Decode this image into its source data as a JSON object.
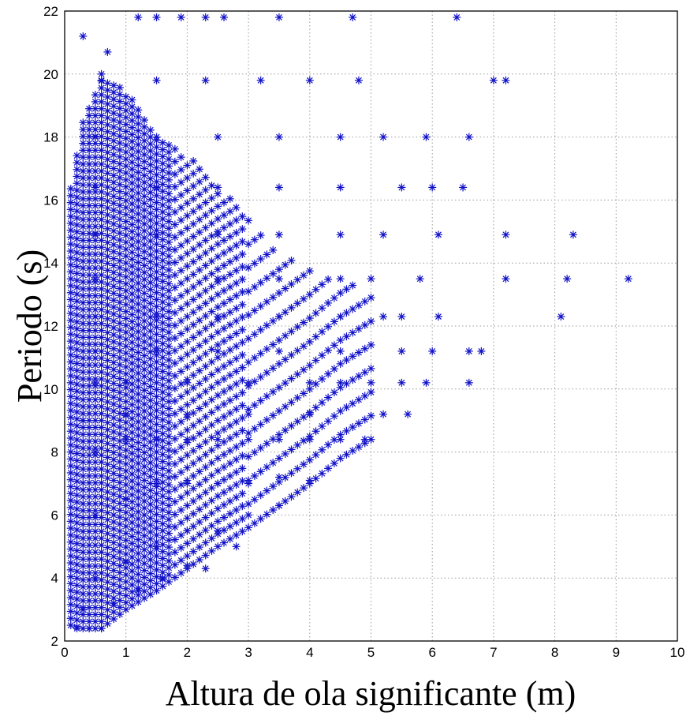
{
  "chart_data": {
    "type": "scatter",
    "xlabel": "Altura de ola significante (m)",
    "ylabel": "Periodo (s)",
    "xlim": [
      0,
      10
    ],
    "ylim": [
      2,
      22
    ],
    "xticks": [
      "0",
      "1",
      "2",
      "3",
      "4",
      "5",
      "6",
      "7",
      "8",
      "9",
      "10"
    ],
    "yticks": [
      "2",
      "4",
      "6",
      "8",
      "10",
      "12",
      "14",
      "16",
      "18",
      "20",
      "22"
    ],
    "grid": true,
    "marker": "asterisk",
    "color": "#1010c8",
    "dense_region": {
      "description_free_point_cloud": [
        [
          0.2,
          2.4
        ],
        [
          0.4,
          2.4
        ],
        [
          0.6,
          2.4
        ],
        [
          0.3,
          3
        ],
        [
          0.8,
          3.2
        ],
        [
          1.2,
          3.6
        ],
        [
          1.6,
          4
        ],
        [
          2,
          4.4
        ],
        [
          2.3,
          4.3
        ],
        [
          0.5,
          4
        ],
        [
          1,
          4.5
        ],
        [
          1.5,
          5
        ],
        [
          2,
          5.5
        ],
        [
          2.5,
          5.5
        ],
        [
          3,
          6
        ],
        [
          3.5,
          6.3
        ],
        [
          2.8,
          5
        ],
        [
          0.5,
          6
        ],
        [
          1,
          6.5
        ],
        [
          1.5,
          7
        ],
        [
          2,
          7
        ],
        [
          2.5,
          7
        ],
        [
          3,
          7
        ],
        [
          3.5,
          7.2
        ],
        [
          4,
          7.1
        ],
        [
          0.5,
          8
        ],
        [
          1,
          8.4
        ],
        [
          1.5,
          8.4
        ],
        [
          2,
          8.4
        ],
        [
          2.5,
          8.4
        ],
        [
          3,
          8.4
        ],
        [
          3.5,
          8.4
        ],
        [
          4,
          8.4
        ],
        [
          4.5,
          8.4
        ],
        [
          4.9,
          8.4
        ],
        [
          0.3,
          9
        ],
        [
          1,
          9.2
        ],
        [
          2,
          9.2
        ],
        [
          3,
          9.2
        ],
        [
          4,
          9.2
        ],
        [
          5.2,
          9.2
        ],
        [
          5.6,
          9.2
        ],
        [
          0.5,
          10.2
        ],
        [
          1,
          10.2
        ],
        [
          2,
          10.2
        ],
        [
          3,
          10.2
        ],
        [
          4,
          10.2
        ],
        [
          4.5,
          10.2
        ],
        [
          5,
          10.2
        ],
        [
          5.5,
          10.2
        ],
        [
          5.9,
          10.2
        ],
        [
          6.6,
          10.2
        ],
        [
          0.5,
          11.2
        ],
        [
          1.5,
          11.2
        ],
        [
          2.5,
          11.2
        ],
        [
          3.5,
          11.2
        ],
        [
          4.5,
          11.2
        ],
        [
          5.5,
          11.2
        ],
        [
          6,
          11.2
        ],
        [
          6.6,
          11.2
        ],
        [
          6.8,
          11.2
        ],
        [
          0.5,
          12.3
        ],
        [
          1.5,
          12.3
        ],
        [
          2.5,
          12.3
        ],
        [
          3.5,
          12.3
        ],
        [
          4.5,
          12.3
        ],
        [
          5.2,
          12.3
        ],
        [
          5.5,
          12.3
        ],
        [
          6.1,
          12.3
        ],
        [
          8.1,
          12.3
        ],
        [
          0.5,
          13.5
        ],
        [
          1.5,
          13.5
        ],
        [
          2.5,
          13.5
        ],
        [
          3.5,
          13.5
        ],
        [
          4.5,
          13.5
        ],
        [
          5,
          13.5
        ],
        [
          5.8,
          13.5
        ],
        [
          7.2,
          13.5
        ],
        [
          8.2,
          13.5
        ],
        [
          9.2,
          13.5
        ],
        [
          0.5,
          14.9
        ],
        [
          1.5,
          14.9
        ],
        [
          2.5,
          14.9
        ],
        [
          3.5,
          14.9
        ],
        [
          4.5,
          14.9
        ],
        [
          5.2,
          14.9
        ],
        [
          6.1,
          14.9
        ],
        [
          7.2,
          14.9
        ],
        [
          8.3,
          14.9
        ],
        [
          0.5,
          16.4
        ],
        [
          1.5,
          16.4
        ],
        [
          2.5,
          16.4
        ],
        [
          3.5,
          16.4
        ],
        [
          4.5,
          16.4
        ],
        [
          5.5,
          16.4
        ],
        [
          6,
          16.4
        ],
        [
          6.5,
          16.4
        ],
        [
          0.5,
          18
        ],
        [
          1.5,
          18
        ],
        [
          2.5,
          18
        ],
        [
          3.5,
          18
        ],
        [
          4.5,
          18
        ],
        [
          5.2,
          18
        ],
        [
          5.9,
          18
        ],
        [
          6.6,
          18
        ],
        [
          0.6,
          19.8
        ],
        [
          1.5,
          19.8
        ],
        [
          2.3,
          19.8
        ],
        [
          3.2,
          19.8
        ],
        [
          4,
          19.8
        ],
        [
          4.8,
          19.8
        ],
        [
          7,
          19.8
        ],
        [
          7.2,
          19.8
        ],
        [
          0.3,
          21.2
        ],
        [
          0.7,
          20.7
        ],
        [
          1.2,
          21.8
        ],
        [
          1.5,
          21.8
        ],
        [
          1.9,
          21.8
        ],
        [
          2.3,
          21.8
        ],
        [
          2.6,
          21.8
        ],
        [
          3.5,
          21.8
        ],
        [
          4.7,
          21.8
        ],
        [
          6.4,
          21.8
        ]
      ]
    }
  }
}
